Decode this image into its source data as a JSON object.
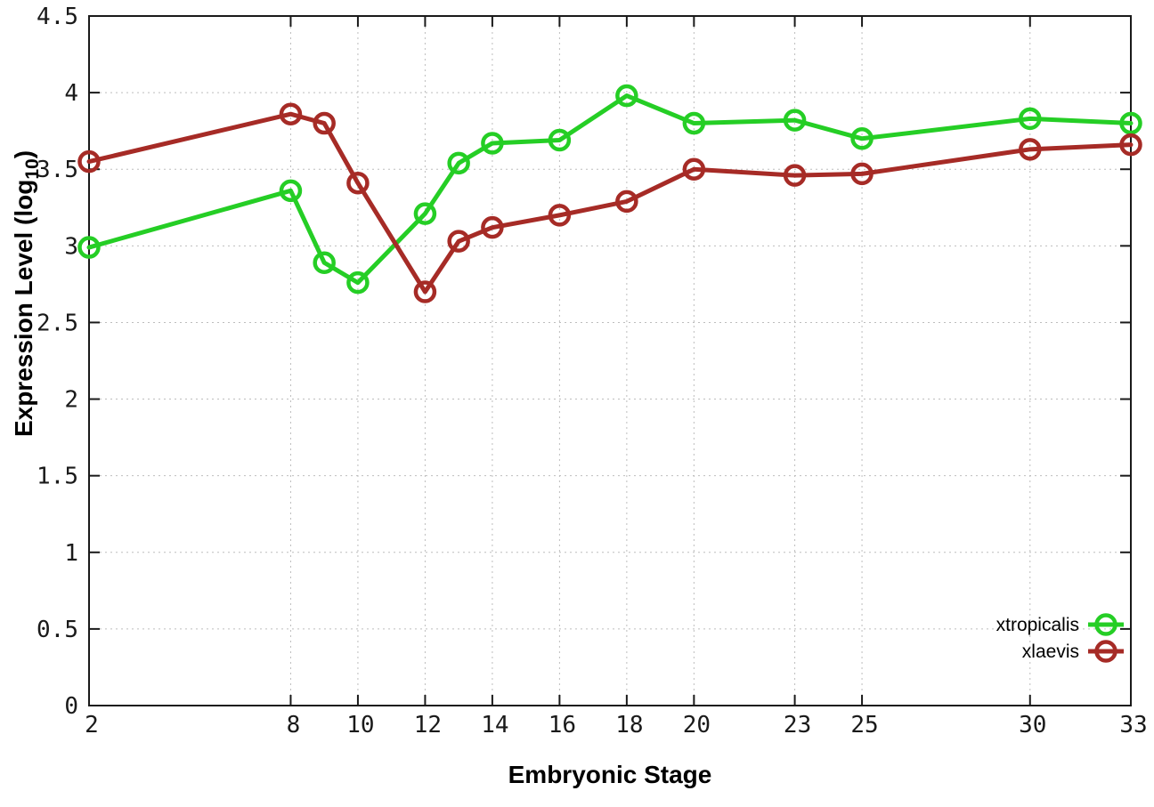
{
  "chart_data": {
    "type": "line",
    "title": "",
    "xlabel": "Embryonic Stage",
    "ylabel": "Expression Level (log10)",
    "ylabel_parts": {
      "prefix": "Expression Level (log",
      "sub": "10",
      "suffix": ")"
    },
    "x": [
      2,
      8,
      9,
      10,
      12,
      13,
      14,
      16,
      18,
      20,
      23,
      25,
      30,
      33
    ],
    "series": [
      {
        "name": "xtropicalis",
        "color": "#25CE25",
        "values": [
          2.99,
          3.36,
          2.89,
          2.76,
          3.21,
          3.54,
          3.67,
          3.69,
          3.98,
          3.8,
          3.82,
          3.7,
          3.83,
          3.8
        ]
      },
      {
        "name": "xlaevis",
        "color": "#A62B26",
        "values": [
          3.55,
          3.86,
          3.8,
          3.41,
          2.7,
          3.03,
          3.12,
          3.2,
          3.29,
          3.5,
          3.46,
          3.47,
          3.63,
          3.66
        ]
      }
    ],
    "xlim": [
      2,
      33
    ],
    "ylim": [
      0,
      4.5
    ],
    "x_ticks": [
      2,
      8,
      10,
      12,
      14,
      16,
      18,
      20,
      23,
      25,
      30,
      33
    ],
    "x_tick_labels": [
      "2",
      "8",
      "10",
      "12",
      "14",
      "16",
      "18",
      "20",
      "23",
      "25",
      "30",
      "33"
    ],
    "y_ticks": [
      0,
      0.5,
      1,
      1.5,
      2,
      2.5,
      3,
      3.5,
      4,
      4.5
    ],
    "y_tick_labels": [
      "0",
      "0.5",
      "1",
      "1.5",
      "2",
      "2.5",
      "3",
      "3.5",
      "4",
      "4.5"
    ],
    "grid": true,
    "legend_position": "bottom-right",
    "legend": [
      "xtropicalis",
      "xlaevis"
    ],
    "colors": {
      "border": "#1a1a1a",
      "grid": "#bdbdbd",
      "background": "#ffffff",
      "text": "#000000"
    },
    "marker": "open-circle"
  }
}
